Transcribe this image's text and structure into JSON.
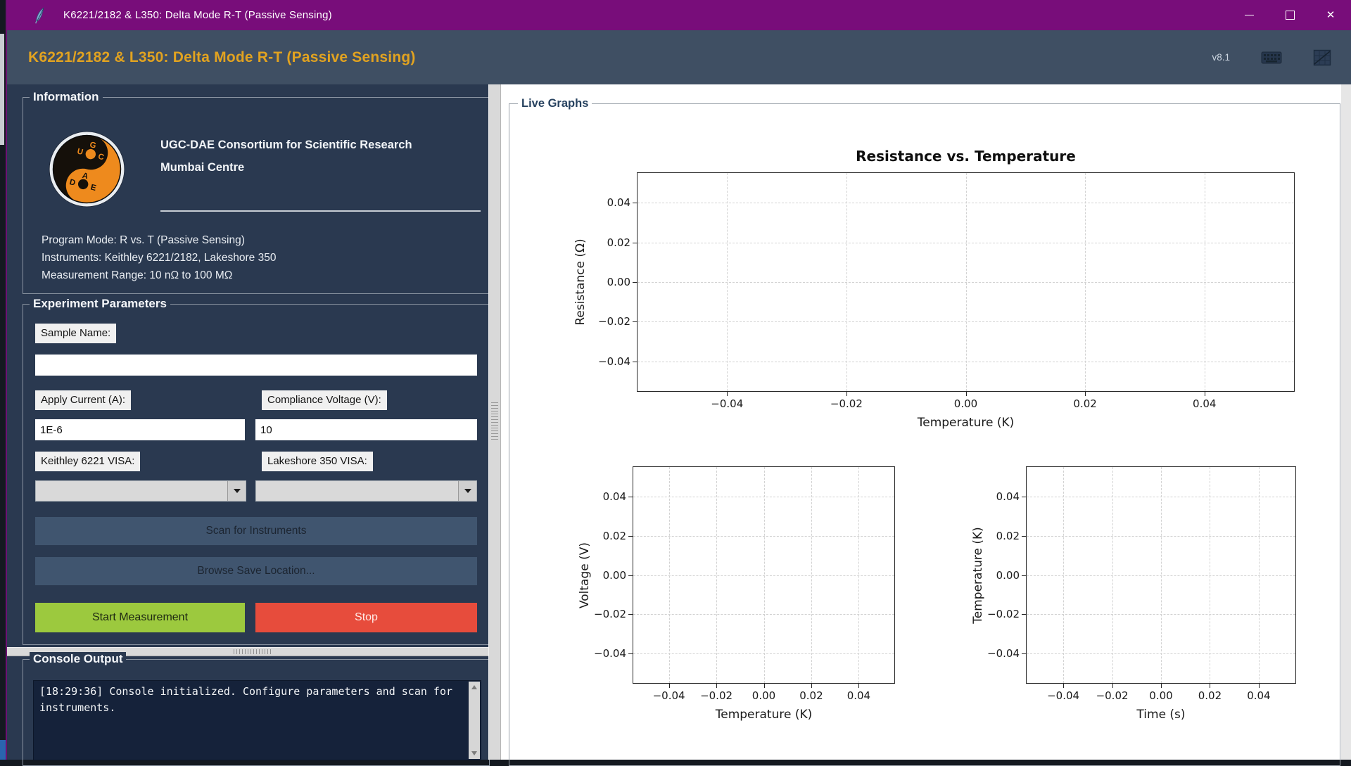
{
  "window": {
    "title": "K6221/2182 & L350: Delta Mode R-T (Passive Sensing)"
  },
  "header": {
    "title": "K6221/2182 & L350: Delta Mode R-T (Passive Sensing)",
    "version": "v8.1",
    "accent_color": "#E2A320",
    "background_color": "#3F4F63"
  },
  "information": {
    "section_title": "Information",
    "org_line1": "UGC-DAE Consortium for Scientific Research",
    "org_line2": "Mumbai Centre",
    "logo": {
      "letters_top": [
        "G",
        "U",
        "C"
      ],
      "letters_bottom": [
        "A",
        "D",
        "E"
      ],
      "orange": "#EE8A1D",
      "black": "#15100a"
    },
    "details": [
      "Program Mode: R vs. T (Passive Sensing)",
      "Instruments: Keithley 6221/2182, Lakeshore 350",
      "Measurement Range: 10 nΩ to 100 MΩ"
    ]
  },
  "parameters": {
    "section_title": "Experiment Parameters",
    "sample_name": {
      "label": "Sample Name:",
      "value": ""
    },
    "apply_current": {
      "label": "Apply Current (A):",
      "value": "1E-6"
    },
    "compliance_voltage": {
      "label": "Compliance Voltage (V):",
      "value": "10"
    },
    "keithley_visa": {
      "label": "Keithley 6221 VISA:",
      "value": ""
    },
    "lakeshore_visa": {
      "label": "Lakeshore 350 VISA:",
      "value": ""
    },
    "buttons": {
      "scan": "Scan for Instruments",
      "browse": "Browse Save Location...",
      "start": "Start Measurement",
      "stop": "Stop"
    },
    "colors": {
      "start_bg": "#9CC93E",
      "stop_bg": "#E74C3C",
      "action_bg": "#40556F"
    }
  },
  "console": {
    "section_title": "Console Output",
    "lines": [
      "[18:29:36] Console initialized. Configure parameters and scan for instruments."
    ]
  },
  "graphs": {
    "section_title": "Live Graphs"
  },
  "chart_data": [
    {
      "id": "rt",
      "type": "line",
      "title": "Resistance vs. Temperature",
      "xlabel": "Temperature (K)",
      "ylabel": "Resistance (Ω)",
      "x_ticks": [
        -0.04,
        -0.02,
        0.0,
        0.02,
        0.04
      ],
      "y_ticks": [
        0.04,
        0.02,
        0.0,
        -0.02,
        -0.04
      ],
      "x_tick_labels": [
        "−0.04",
        "−0.02",
        "0.00",
        "0.02",
        "0.04"
      ],
      "y_tick_labels": [
        "0.04",
        "0.02",
        "0.00",
        "−0.02",
        "−0.04"
      ],
      "xlim": [
        -0.055,
        0.055
      ],
      "ylim": [
        -0.055,
        0.055
      ],
      "grid": true,
      "grid_style": "dashed",
      "series": []
    },
    {
      "id": "vt",
      "type": "line",
      "title": "",
      "xlabel": "Temperature (K)",
      "ylabel": "Voltage (V)",
      "x_ticks": [
        -0.04,
        -0.02,
        0.0,
        0.02,
        0.04
      ],
      "y_ticks": [
        0.04,
        0.02,
        0.0,
        -0.02,
        -0.04
      ],
      "x_tick_labels": [
        "−0.04",
        "−0.02",
        "0.00",
        "0.02",
        "0.04"
      ],
      "y_tick_labels": [
        "0.04",
        "0.02",
        "0.00",
        "−0.02",
        "−0.04"
      ],
      "xlim": [
        -0.055,
        0.055
      ],
      "ylim": [
        -0.055,
        0.055
      ],
      "grid": true,
      "grid_style": "dashed",
      "series": []
    },
    {
      "id": "tt",
      "type": "line",
      "title": "",
      "xlabel": "Time (s)",
      "ylabel": "Temperature (K)",
      "x_ticks": [
        -0.04,
        -0.02,
        0.0,
        0.02,
        0.04
      ],
      "y_ticks": [
        0.04,
        0.02,
        0.0,
        -0.02,
        -0.04
      ],
      "x_tick_labels": [
        "−0.04",
        "−0.02",
        "0.00",
        "0.02",
        "0.04"
      ],
      "y_tick_labels": [
        "0.04",
        "0.02",
        "0.00",
        "−0.02",
        "−0.04"
      ],
      "xlim": [
        -0.055,
        0.055
      ],
      "ylim": [
        -0.055,
        0.055
      ],
      "grid": true,
      "grid_style": "dashed",
      "series": []
    }
  ]
}
